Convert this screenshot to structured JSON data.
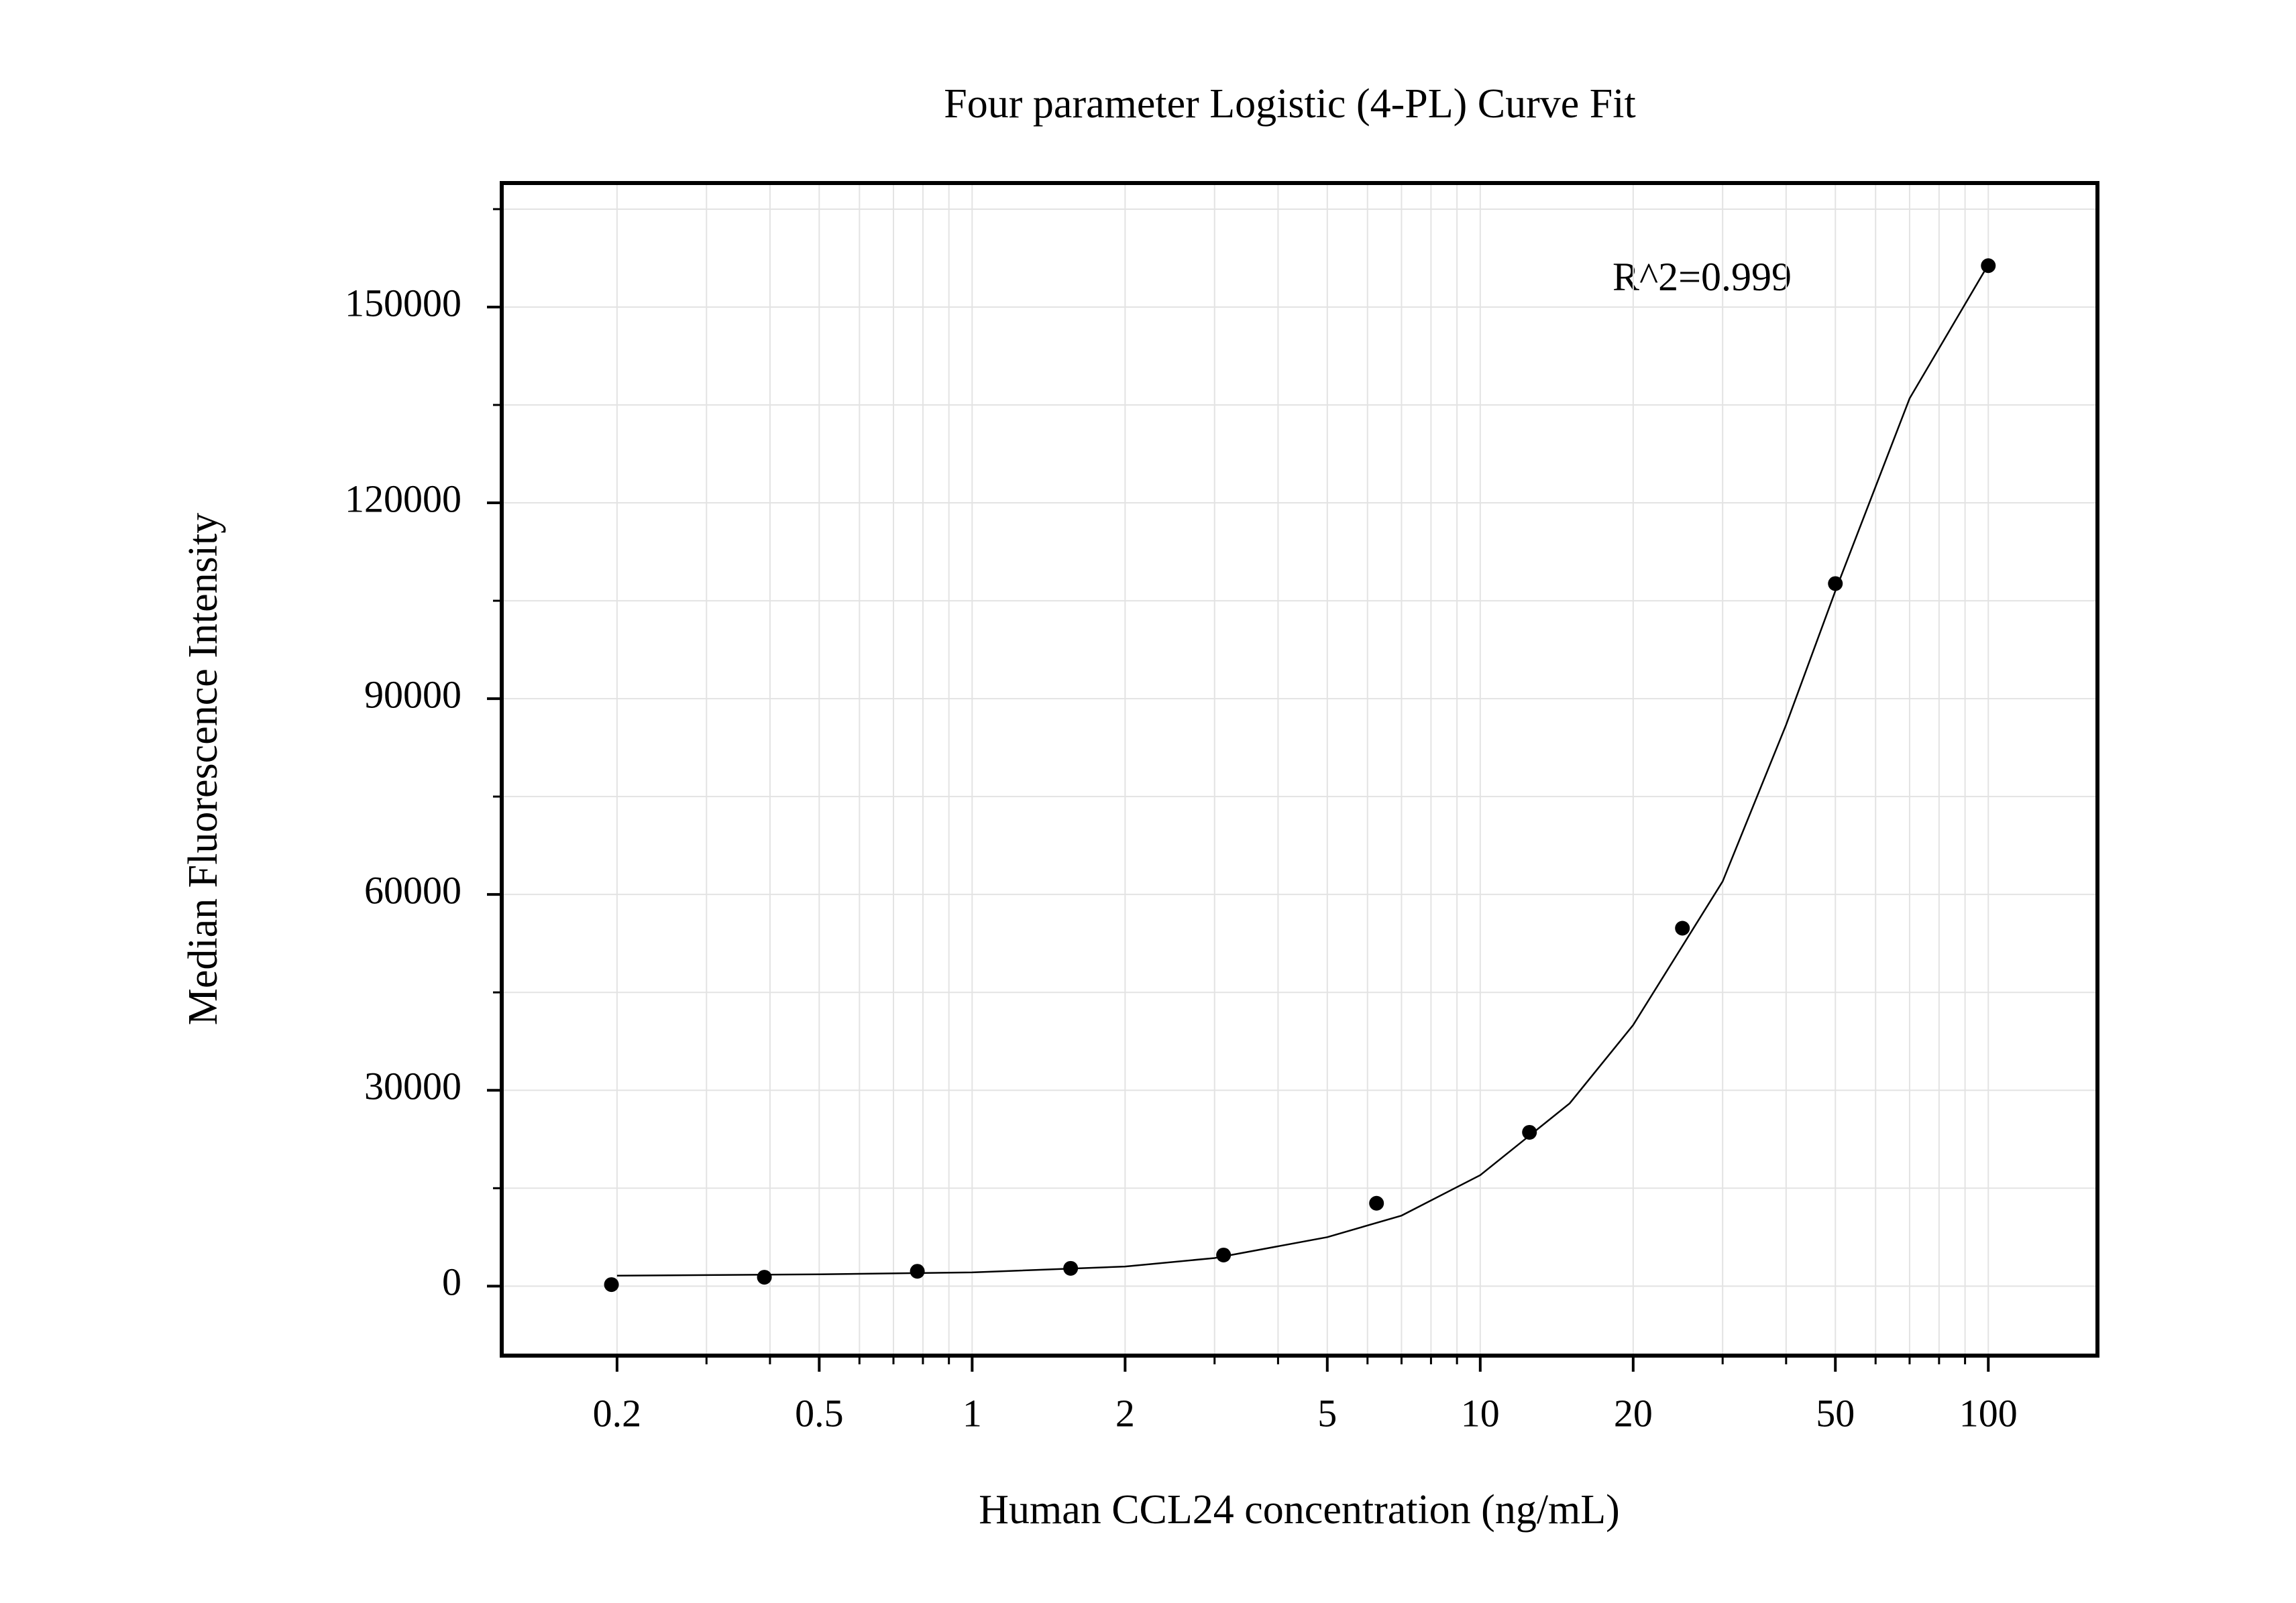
{
  "chart_data": {
    "type": "scatter",
    "title": "Four parameter Logistic (4-PL) Curve Fit",
    "x_label": "Human CCL24 concentration (ng/mL)",
    "y_label": "Median Fluorescence Intensity",
    "annotation": "R^2=0.999",
    "xscale": "log",
    "xlim": [
      0.1186,
      164
    ],
    "ylim": [
      -10650,
      169000
    ],
    "xticks": [
      0.2,
      0.5,
      1,
      2,
      5,
      10,
      20,
      50,
      100
    ],
    "xminor": [
      0.3,
      0.4,
      0.6,
      0.7,
      0.8,
      0.9,
      3,
      4,
      6,
      7,
      8,
      9,
      30,
      40,
      60,
      70,
      80,
      90
    ],
    "yticks": [
      0,
      30000,
      60000,
      90000,
      120000,
      150000
    ],
    "yminor": [
      15000,
      45000,
      75000,
      105000,
      135000,
      165000
    ],
    "grid": true,
    "color": "#000000",
    "points": {
      "x": [
        0.195,
        0.39,
        0.78,
        1.5625,
        3.125,
        6.25,
        12.5,
        25,
        50,
        100
      ],
      "y": [
        230,
        1360,
        2270,
        2720,
        4760,
        12690,
        23560,
        54830,
        107630,
        156340
      ]
    },
    "curve": {
      "x": [
        0.2,
        0.5,
        1,
        2,
        3,
        5,
        7,
        10,
        15,
        20,
        30,
        40,
        50,
        70,
        100
      ],
      "y": [
        1600,
        1800,
        2100,
        3000,
        4300,
        7500,
        10800,
        17000,
        28000,
        40000,
        62000,
        86000,
        106500,
        136000,
        156500
      ]
    }
  }
}
